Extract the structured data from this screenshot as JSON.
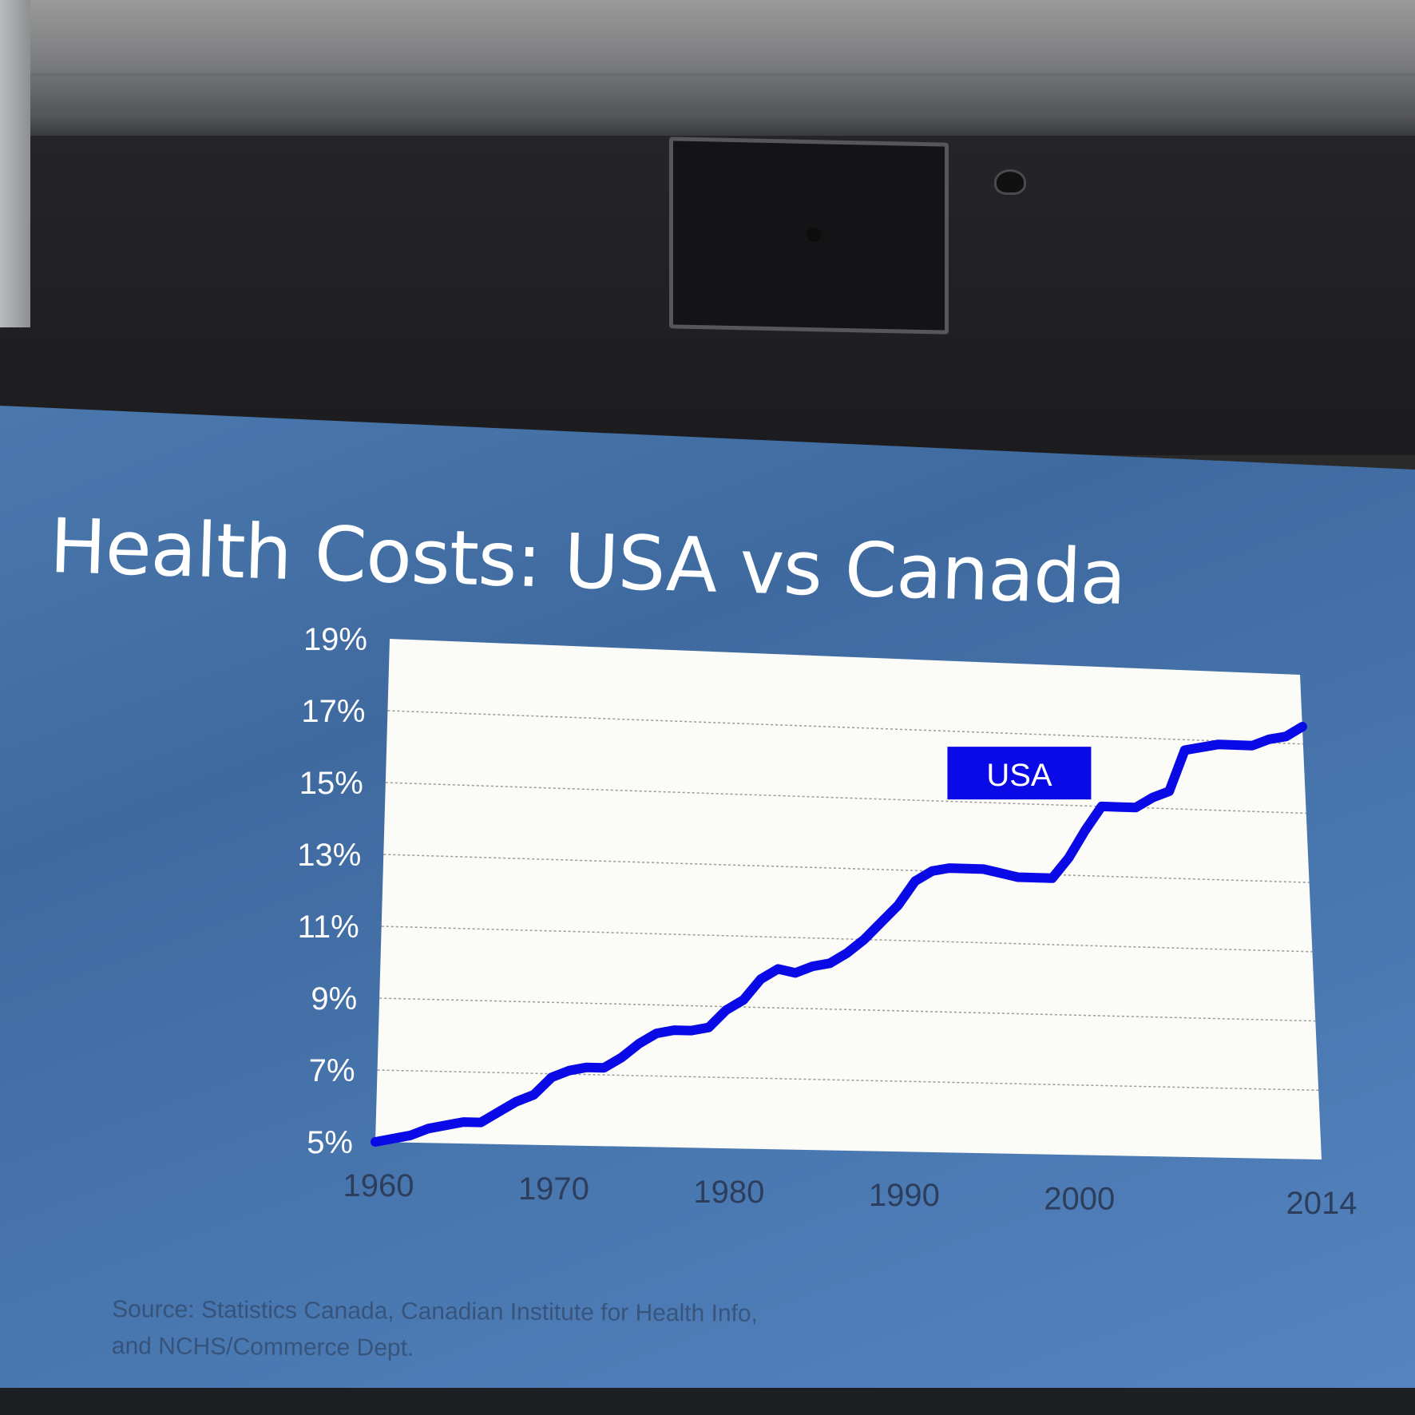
{
  "slide": {
    "title": "Health Costs: USA vs Canada",
    "source": "Source: Statistics Canada, Canadian Institute for Health Info, and NCHS/Commerce Dept."
  },
  "colors": {
    "series": "#0a0ae6",
    "plot_background": "#fbfbf8",
    "slide_background": "#4572a8",
    "label_text": "#ffffff",
    "x_tick_text": "#2d3e5c"
  },
  "chart_data": {
    "type": "line",
    "title": "Health Costs: USA vs Canada",
    "xlabel": "",
    "ylabel": "",
    "xlim": [
      1960,
      2014
    ],
    "ylim": [
      5,
      19
    ],
    "x_ticks": [
      1960,
      1970,
      1980,
      1990,
      2000,
      2014
    ],
    "x_tick_labels": [
      "1960",
      "1970",
      "1980",
      "1990",
      "2000",
      "2014"
    ],
    "y_ticks": [
      5,
      7,
      9,
      11,
      13,
      15,
      17,
      19
    ],
    "y_tick_labels": [
      "5%",
      "7%",
      "9%",
      "11%",
      "13%",
      "15%",
      "17%",
      "19%"
    ],
    "grid": true,
    "series": [
      {
        "name": "USA",
        "x": [
          1960,
          1961,
          1962,
          1963,
          1964,
          1965,
          1966,
          1967,
          1968,
          1969,
          1970,
          1971,
          1972,
          1973,
          1974,
          1975,
          1976,
          1977,
          1978,
          1979,
          1980,
          1981,
          1982,
          1983,
          1984,
          1985,
          1986,
          1987,
          1988,
          1989,
          1990,
          1991,
          1992,
          1993,
          1994,
          1995,
          1996,
          1997,
          1998,
          1999,
          2000,
          2001,
          2002,
          2003,
          2004,
          2005,
          2006,
          2007,
          2008,
          2009,
          2010,
          2011,
          2012,
          2013,
          2014
        ],
        "y": [
          5.0,
          5.1,
          5.2,
          5.4,
          5.5,
          5.6,
          5.6,
          5.9,
          6.2,
          6.4,
          6.9,
          7.1,
          7.2,
          7.2,
          7.5,
          7.9,
          8.2,
          8.3,
          8.3,
          8.4,
          8.9,
          9.2,
          9.8,
          10.1,
          10.0,
          10.2,
          10.3,
          10.6,
          11.0,
          11.5,
          12.0,
          12.7,
          13.0,
          13.1,
          13.1,
          13.1,
          13.0,
          12.9,
          12.9,
          12.9,
          13.5,
          14.3,
          15.0,
          15.0,
          15.0,
          15.3,
          15.5,
          16.7,
          16.8,
          16.9,
          16.9,
          16.9,
          17.1,
          17.2,
          17.5
        ],
        "label": "USA"
      }
    ]
  }
}
